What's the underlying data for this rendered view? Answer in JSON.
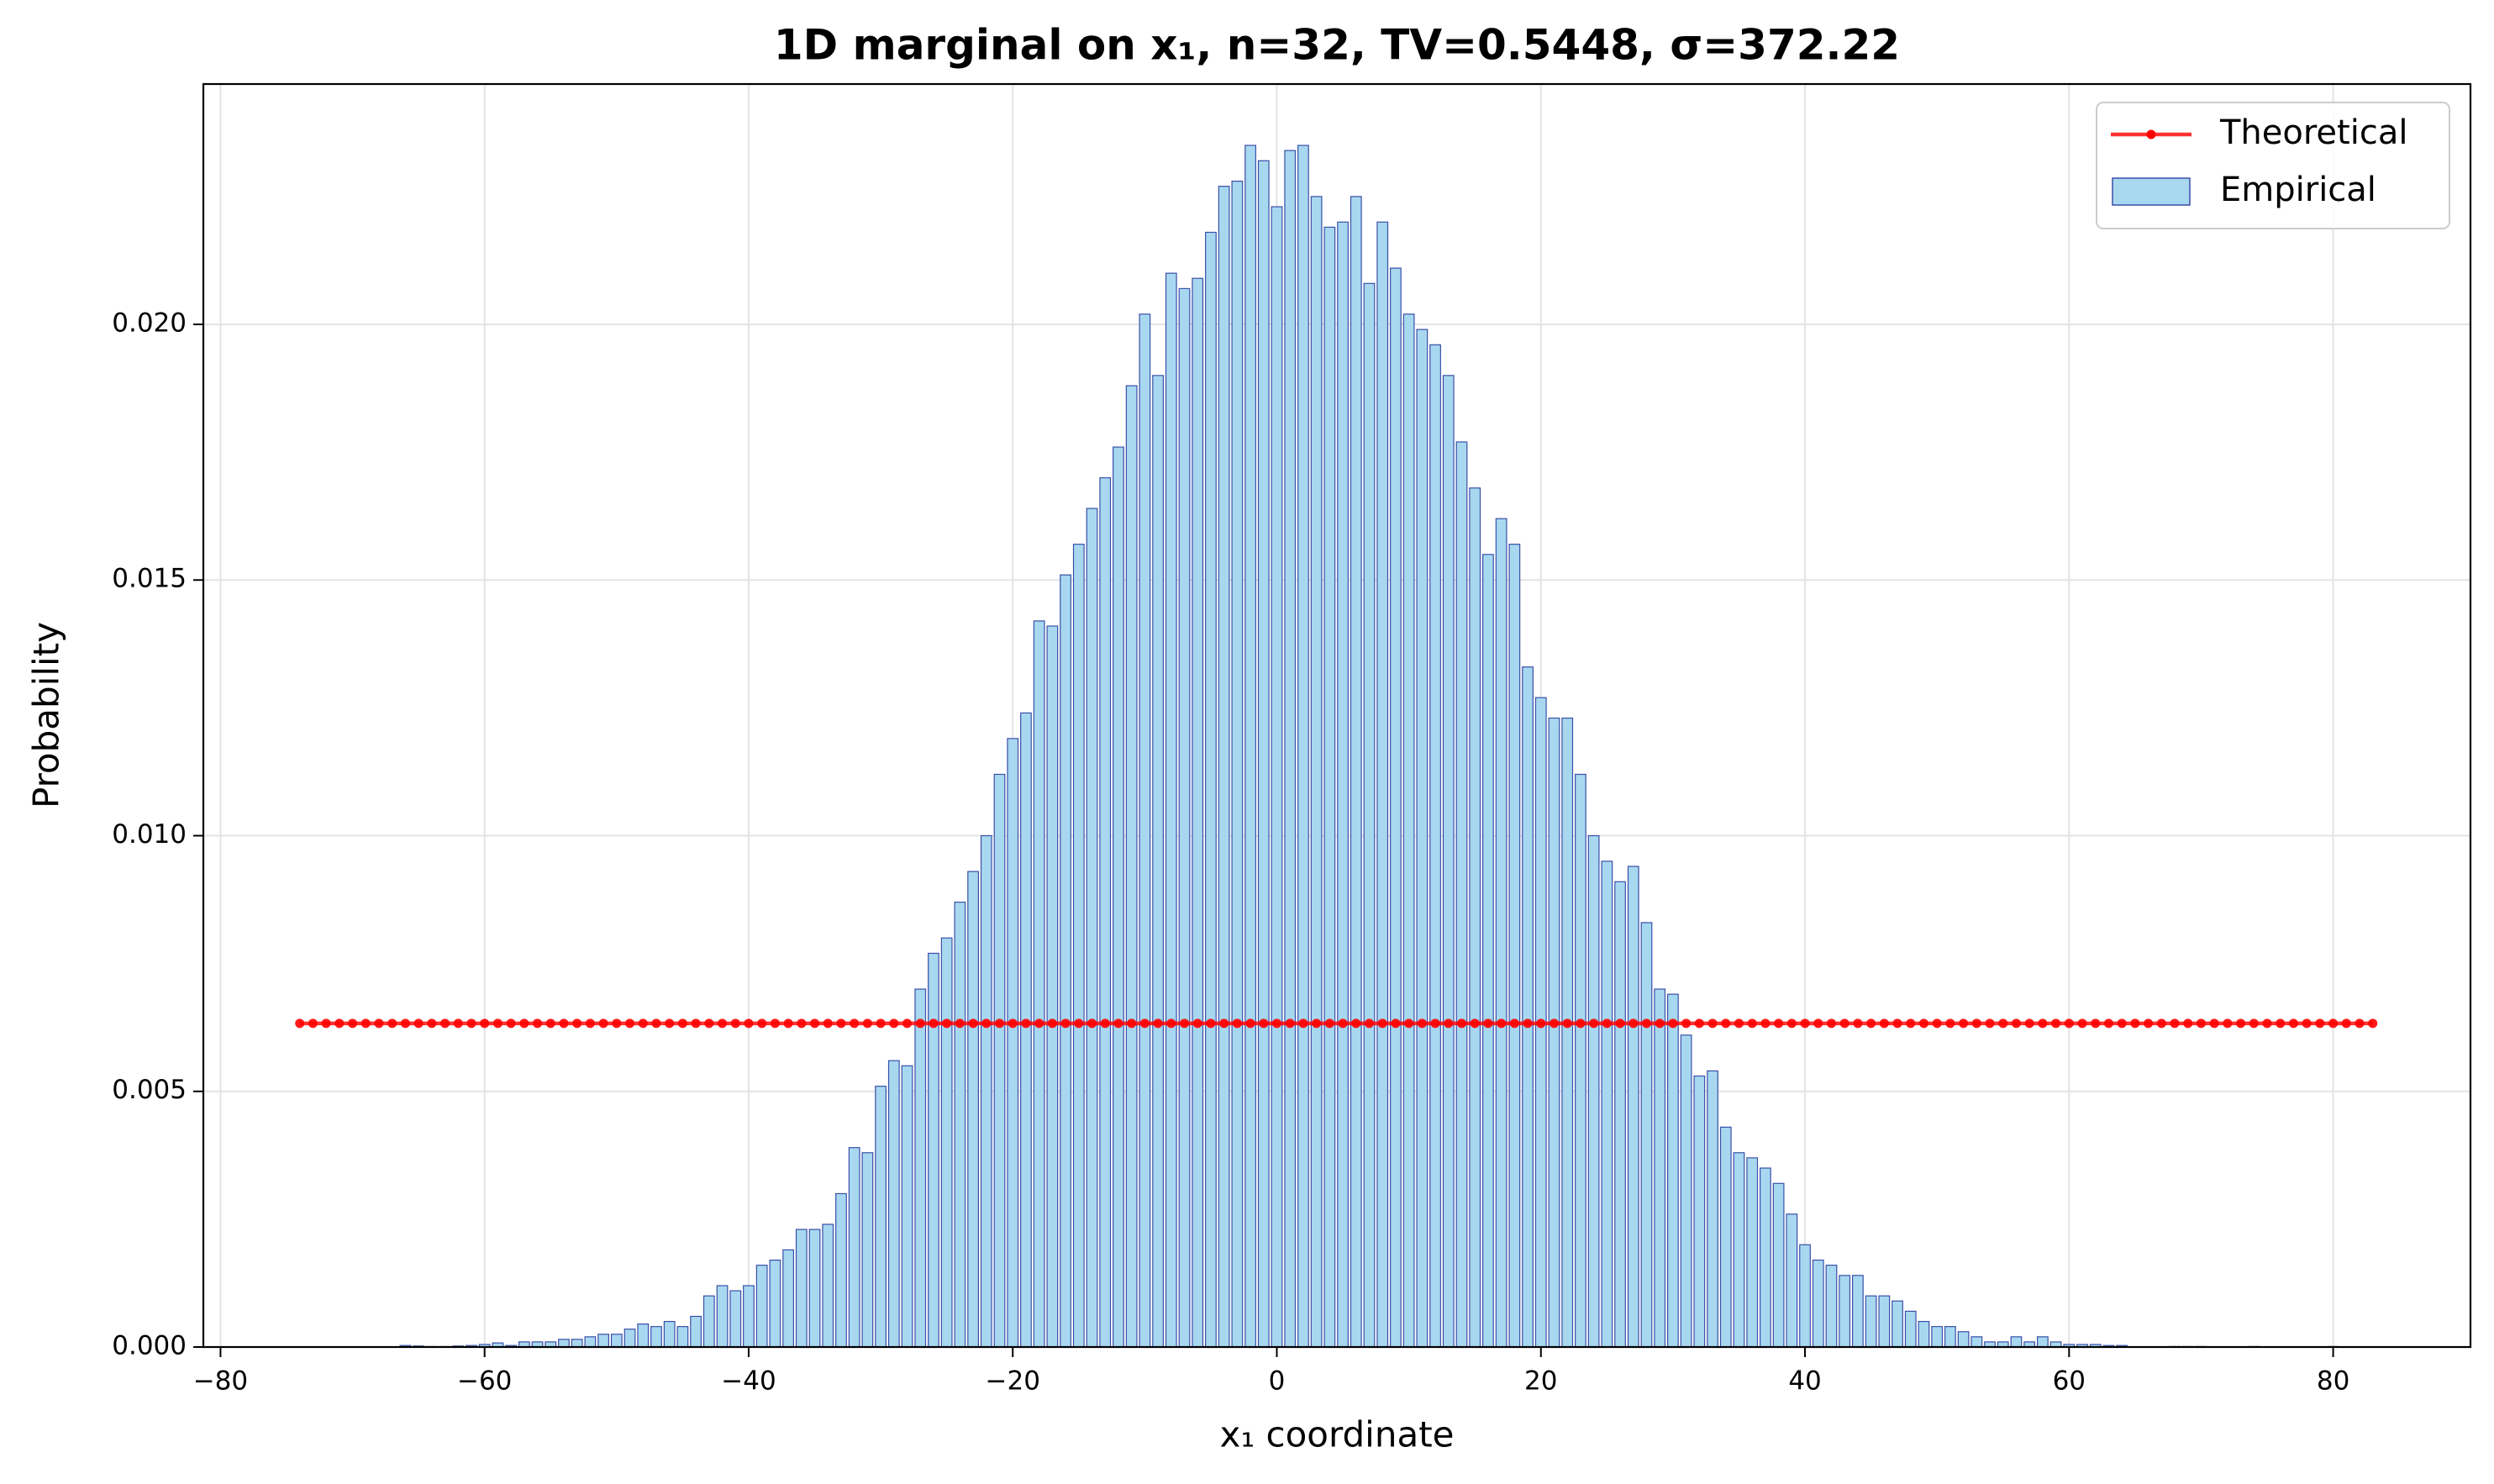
{
  "chart_data": {
    "type": "bar",
    "title": "1D marginal on x₁, n=32, TV=0.5448, σ=372.22",
    "x_label": "x₁ coordinate",
    "y_label": "Probability",
    "x": [
      -74,
      -73,
      -72,
      -71,
      -70,
      -69,
      -68,
      -67,
      -66,
      -65,
      -64,
      -63,
      -62,
      -61,
      -60,
      -59,
      -58,
      -57,
      -56,
      -55,
      -54,
      -53,
      -52,
      -51,
      -50,
      -49,
      -48,
      -47,
      -46,
      -45,
      -44,
      -43,
      -42,
      -41,
      -40,
      -39,
      -38,
      -37,
      -36,
      -35,
      -34,
      -33,
      -32,
      -31,
      -30,
      -29,
      -28,
      -27,
      -26,
      -25,
      -24,
      -23,
      -22,
      -21,
      -20,
      -19,
      -18,
      -17,
      -16,
      -15,
      -14,
      -13,
      -12,
      -11,
      -10,
      -9,
      -8,
      -7,
      -6,
      -5,
      -4,
      -3,
      -2,
      -1,
      0,
      1,
      2,
      3,
      4,
      5,
      6,
      7,
      8,
      9,
      10,
      11,
      12,
      13,
      14,
      15,
      16,
      17,
      18,
      19,
      20,
      21,
      22,
      23,
      24,
      25,
      26,
      27,
      28,
      29,
      30,
      31,
      32,
      33,
      34,
      35,
      36,
      37,
      38,
      39,
      40,
      41,
      42,
      43,
      44,
      45,
      46,
      47,
      48,
      49,
      50,
      51,
      52,
      53,
      54,
      55,
      56,
      57,
      58,
      59,
      60,
      61,
      62,
      63,
      64,
      65,
      66,
      67,
      68,
      69,
      70,
      71,
      72,
      73,
      74,
      75,
      76,
      77,
      78,
      79,
      80,
      81,
      82,
      83
    ],
    "series": [
      {
        "name": "Theoretical",
        "type": "line",
        "color": "#ff0000",
        "values": [
          0.00633,
          0.00633,
          0.00633,
          0.00633,
          0.00633,
          0.00633,
          0.00633,
          0.00633,
          0.00633,
          0.00633,
          0.00633,
          0.00633,
          0.00633,
          0.00633,
          0.00633,
          0.00633,
          0.00633,
          0.00633,
          0.00633,
          0.00633,
          0.00633,
          0.00633,
          0.00633,
          0.00633,
          0.00633,
          0.00633,
          0.00633,
          0.00633,
          0.00633,
          0.00633,
          0.00633,
          0.00633,
          0.00633,
          0.00633,
          0.00633,
          0.00633,
          0.00633,
          0.00633,
          0.00633,
          0.00633,
          0.00633,
          0.00633,
          0.00633,
          0.00633,
          0.00633,
          0.00633,
          0.00633,
          0.00633,
          0.00633,
          0.00633,
          0.00633,
          0.00633,
          0.00633,
          0.00633,
          0.00633,
          0.00633,
          0.00633,
          0.00633,
          0.00633,
          0.00633,
          0.00633,
          0.00633,
          0.00633,
          0.00633,
          0.00633,
          0.00633,
          0.00633,
          0.00633,
          0.00633,
          0.00633,
          0.00633,
          0.00633,
          0.00633,
          0.00633,
          0.00633,
          0.00633,
          0.00633,
          0.00633,
          0.00633,
          0.00633,
          0.00633,
          0.00633,
          0.00633,
          0.00633,
          0.00633,
          0.00633,
          0.00633,
          0.00633,
          0.00633,
          0.00633,
          0.00633,
          0.00633,
          0.00633,
          0.00633,
          0.00633,
          0.00633,
          0.00633,
          0.00633,
          0.00633,
          0.00633,
          0.00633,
          0.00633,
          0.00633,
          0.00633,
          0.00633,
          0.00633,
          0.00633,
          0.00633,
          0.00633,
          0.00633,
          0.00633,
          0.00633,
          0.00633,
          0.00633,
          0.00633,
          0.00633,
          0.00633,
          0.00633,
          0.00633,
          0.00633,
          0.00633,
          0.00633,
          0.00633,
          0.00633,
          0.00633,
          0.00633,
          0.00633,
          0.00633,
          0.00633,
          0.00633,
          0.00633,
          0.00633,
          0.00633,
          0.00633,
          0.00633,
          0.00633,
          0.00633,
          0.00633,
          0.00633,
          0.00633,
          0.00633,
          0.00633,
          0.00633,
          0.00633,
          0.00633,
          0.00633,
          0.00633,
          0.00633,
          0.00633,
          0.00633,
          0.00633,
          0.00633,
          0.00633,
          0.00633,
          0.00633,
          0.00633,
          0.00633,
          0.00633
        ]
      },
      {
        "name": "Empirical",
        "type": "bar",
        "color": "#a8d8f0",
        "edge_color": "#3a4fa8",
        "values": [
          0,
          0,
          0,
          0,
          0,
          0,
          0,
          0,
          3e-05,
          2e-05,
          1e-05,
          1e-05,
          2e-05,
          3e-05,
          5e-05,
          8e-05,
          3e-05,
          0.0001,
          0.0001,
          0.0001,
          0.00015,
          0.00015,
          0.0002,
          0.00025,
          0.00025,
          0.00035,
          0.00045,
          0.0004,
          0.0005,
          0.0004,
          0.0006,
          0.001,
          0.0012,
          0.0011,
          0.0012,
          0.0016,
          0.0017,
          0.0019,
          0.0023,
          0.0023,
          0.0024,
          0.003,
          0.0039,
          0.0038,
          0.0051,
          0.0056,
          0.0055,
          0.007,
          0.0077,
          0.008,
          0.0087,
          0.0093,
          0.01,
          0.0112,
          0.0119,
          0.0124,
          0.0142,
          0.0141,
          0.0151,
          0.0157,
          0.0164,
          0.017,
          0.0176,
          0.0188,
          0.0202,
          0.019,
          0.021,
          0.0207,
          0.0209,
          0.0218,
          0.0227,
          0.0228,
          0.0235,
          0.0232,
          0.0223,
          0.0234,
          0.0235,
          0.0225,
          0.0219,
          0.022,
          0.0225,
          0.0208,
          0.022,
          0.0211,
          0.0202,
          0.0199,
          0.0196,
          0.019,
          0.0177,
          0.0168,
          0.0155,
          0.0162,
          0.0157,
          0.0133,
          0.0127,
          0.0123,
          0.0123,
          0.0112,
          0.01,
          0.0095,
          0.0091,
          0.0094,
          0.0083,
          0.007,
          0.0069,
          0.0061,
          0.0053,
          0.0054,
          0.0043,
          0.0038,
          0.0037,
          0.0035,
          0.0032,
          0.0026,
          0.002,
          0.0017,
          0.0016,
          0.0014,
          0.0014,
          0.001,
          0.001,
          0.0009,
          0.0007,
          0.0005,
          0.0004,
          0.0004,
          0.0003,
          0.0002,
          0.0001,
          0.0001,
          0.0002,
          0.0001,
          0.0002,
          0.0001,
          5e-05,
          5e-05,
          5e-05,
          3e-05,
          3e-05,
          0,
          0,
          0,
          1e-05,
          1e-05,
          1e-05,
          0,
          0,
          0,
          1e-05,
          0,
          0,
          0,
          0,
          0,
          1e-05,
          0,
          0,
          0
        ]
      }
    ],
    "xlim": [
      -81.3,
      90.4
    ],
    "ylim": [
      0,
      0.0247
    ],
    "xticks": [
      {
        "value": -80,
        "label": "−80"
      },
      {
        "value": -60,
        "label": "−60"
      },
      {
        "value": -40,
        "label": "−40"
      },
      {
        "value": -20,
        "label": "−20"
      },
      0,
      20,
      40,
      60,
      80
    ],
    "yticks": [
      {
        "value": 0,
        "label": "0.000"
      },
      {
        "value": 0.005,
        "label": "0.005"
      },
      {
        "value": 0.01,
        "label": "0.010"
      },
      {
        "value": 0.015,
        "label": "0.015"
      },
      {
        "value": 0.02,
        "label": "0.020"
      }
    ],
    "grid": true,
    "legend": "upper right"
  }
}
